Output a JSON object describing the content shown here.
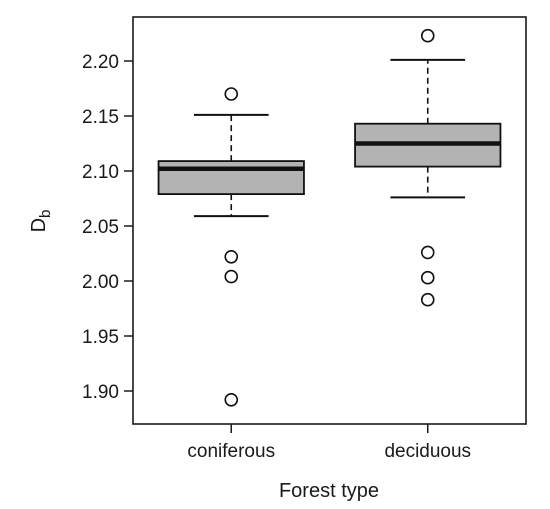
{
  "chart_data": {
    "type": "box",
    "xlabel": "Forest type",
    "ylabel_main": "D",
    "ylabel_sub": "b",
    "ylim": [
      1.87,
      2.24
    ],
    "yticks": [
      "1.90",
      "1.95",
      "2.00",
      "2.05",
      "2.10",
      "2.15",
      "2.20"
    ],
    "categories": [
      "coniferous",
      "deciduous"
    ],
    "boxes": [
      {
        "category": "coniferous",
        "q1": 2.079,
        "median": 2.102,
        "q3": 2.109,
        "whisker_low": 2.059,
        "whisker_high": 2.151,
        "outliers": [
          2.17,
          2.022,
          2.004,
          1.892
        ]
      },
      {
        "category": "deciduous",
        "q1": 2.104,
        "median": 2.125,
        "q3": 2.143,
        "whisker_low": 2.076,
        "whisker_high": 2.201,
        "outliers": [
          2.223,
          2.026,
          2.003,
          1.983
        ]
      }
    ],
    "colors": {
      "box_fill": "#b3b3b3",
      "line": "#111111",
      "outlier_fill": "#ffffff"
    },
    "grid": false,
    "legend": "none"
  }
}
